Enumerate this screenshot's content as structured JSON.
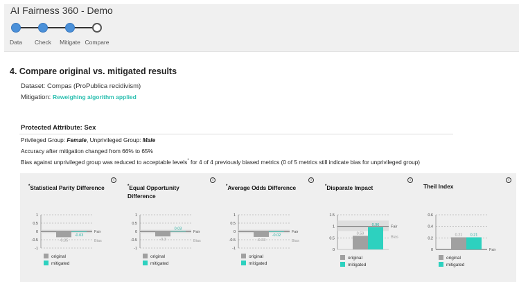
{
  "app": {
    "title": "AI Fairness 360 - Demo"
  },
  "stepper": {
    "steps": [
      "Data",
      "Check",
      "Mitigate",
      "Compare"
    ],
    "current_index": 3
  },
  "section": {
    "title": "4. Compare original vs. mitigated results",
    "dataset_line": "Dataset: Compas (ProPublica recidivism)",
    "mitigation_label": "Mitigation:",
    "mitigation_value": "Reweighing algorithm applied"
  },
  "protected": {
    "title": "Protected Attribute: Sex",
    "priv_prefix": "Privileged Group:",
    "priv_value": "Female",
    "unpriv_prefix": ", Unprivileged Group:",
    "unpriv_value": "Male",
    "accuracy": "Accuracy after mitigation changed from 66% to 65%",
    "bias_pre": "Bias against unprivileged group was reduced to acceptable levels",
    "bias_sup": "*",
    "bias_post": " for 4 of 4 previously biased metrics (0 of 5 metrics still indicate bias for unprivileged group)"
  },
  "legend": {
    "original": "original",
    "mitigated": "mitigated"
  },
  "colors": {
    "original": "#a0a0a0",
    "mitigated": "#2dd1bf",
    "accent": "#2bbfb0",
    "step_done": "#4a90d9"
  },
  "chart_data": [
    {
      "type": "bar",
      "title": "Statistical Parity Difference",
      "asterisk": "*",
      "categories": [
        "original",
        "mitigated"
      ],
      "values": [
        -0.35,
        -0.03
      ],
      "labels": [
        "-0.35",
        "-0.03"
      ],
      "yticks": [
        "1",
        "0.5",
        "0",
        "-0.5",
        "-1"
      ],
      "ylim": [
        -1,
        1
      ],
      "fair_label": "Fair",
      "bias_label": "Bias",
      "fair_value": 0,
      "fair_band": [
        -0.1,
        0.1
      ]
    },
    {
      "type": "bar",
      "title": "Equal Opportunity Difference",
      "asterisk": "*",
      "categories": [
        "original",
        "mitigated"
      ],
      "values": [
        -0.3,
        0.03
      ],
      "labels": [
        "-0.3",
        "0.03"
      ],
      "yticks": [
        "1",
        "0.5",
        "0",
        "-0.5",
        "-1"
      ],
      "ylim": [
        -1,
        1
      ],
      "fair_label": "Fair",
      "bias_label": "Bias",
      "fair_value": 0,
      "fair_band": [
        -0.1,
        0.1
      ]
    },
    {
      "type": "bar",
      "title": "Average Odds Difference",
      "asterisk": "*",
      "categories": [
        "original",
        "mitigated"
      ],
      "values": [
        -0.33,
        -0.02
      ],
      "labels": [
        "-0.33",
        "-0.02"
      ],
      "yticks": [
        "1",
        "0.5",
        "0",
        "-0.5",
        "-1"
      ],
      "ylim": [
        -1,
        1
      ],
      "fair_label": "Fair",
      "bias_label": "Bias",
      "fair_value": 0,
      "fair_band": [
        -0.1,
        0.1
      ]
    },
    {
      "type": "bar",
      "title": "Disparate Impact",
      "asterisk": "*",
      "categories": [
        "original",
        "mitigated"
      ],
      "values": [
        0.59,
        0.96
      ],
      "labels": [
        "0.59",
        "0.96"
      ],
      "yticks": [
        "1.5",
        "1",
        "0.5",
        "0"
      ],
      "ylim": [
        0,
        1.5
      ],
      "fair_label": "Fair",
      "bias_label": "Bias",
      "fair_value": 1,
      "fair_band": [
        0.8,
        1.25
      ]
    },
    {
      "type": "bar",
      "title": "Theil Index",
      "asterisk": "",
      "categories": [
        "original",
        "mitigated"
      ],
      "values": [
        0.21,
        0.21
      ],
      "labels": [
        "0.21",
        "0.21"
      ],
      "yticks": [
        "0.6",
        "0.4",
        "0.2",
        "0"
      ],
      "ylim": [
        0,
        0.6
      ],
      "fair_label": "Fair",
      "bias_label": "",
      "fair_value": 0,
      "fair_band": []
    }
  ]
}
